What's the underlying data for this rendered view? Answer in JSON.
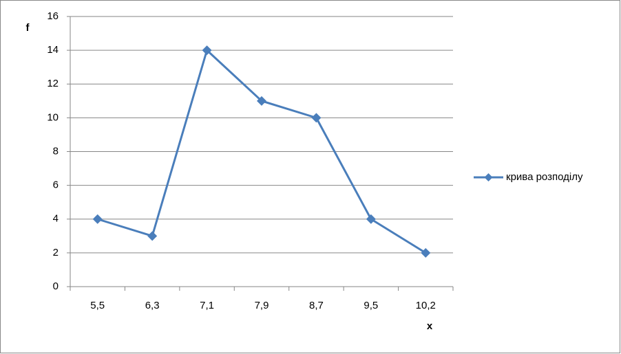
{
  "chart_data": {
    "type": "line",
    "x_label": "x",
    "y_label": "f",
    "categories": [
      "5,5",
      "6,3",
      "7,1",
      "7,9",
      "8,7",
      "9,5",
      "10,2"
    ],
    "series": [
      {
        "name": "крива розподілу",
        "color": "#4a7ebb",
        "values": [
          4,
          3,
          14,
          11,
          10,
          4,
          2
        ]
      }
    ],
    "ylim": [
      0,
      16
    ],
    "yticks": [
      0,
      2,
      4,
      6,
      8,
      10,
      12,
      14,
      16
    ],
    "grid": true,
    "legend": "right"
  }
}
